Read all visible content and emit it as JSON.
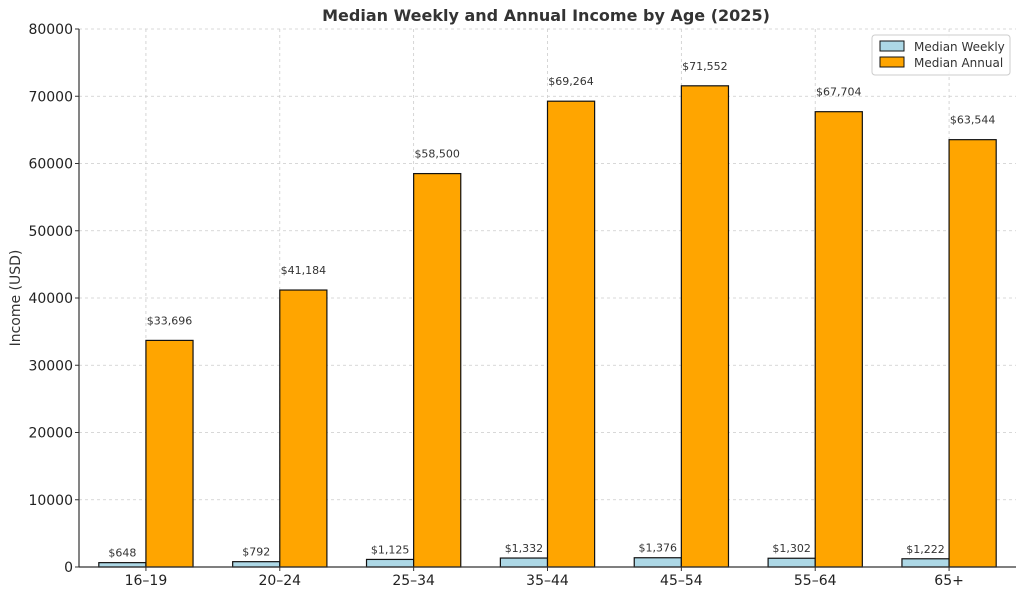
{
  "chart_data": {
    "type": "bar",
    "title": "Median Weekly and Annual Income by Age (2025)",
    "xlabel": "",
    "ylabel": "Income (USD)",
    "ylim": [
      0,
      80000
    ],
    "yticks": [
      "0",
      "10000",
      "20000",
      "30000",
      "40000",
      "50000",
      "60000",
      "70000",
      "80000"
    ],
    "categories": [
      "16–19",
      "20–24",
      "25–34",
      "35–44",
      "45–54",
      "55–64",
      "65+"
    ],
    "series": [
      {
        "name": "Median Weekly",
        "color": "#add8e6",
        "values": [
          648,
          792,
          1125,
          1332,
          1376,
          1302,
          1222
        ],
        "labels": [
          "$648",
          "$792",
          "$1,125",
          "$1,332",
          "$1,376",
          "$1,302",
          "$1,222"
        ]
      },
      {
        "name": "Median Annual",
        "color": "#ffa500",
        "values": [
          33696,
          41184,
          58500,
          69264,
          71552,
          67704,
          63544
        ],
        "labels": [
          "$33,696",
          "$41,184",
          "$58,500",
          "$69,264",
          "$71,552",
          "$67,704",
          "$63,544"
        ]
      }
    ],
    "grid": true,
    "legend": "top-right"
  }
}
